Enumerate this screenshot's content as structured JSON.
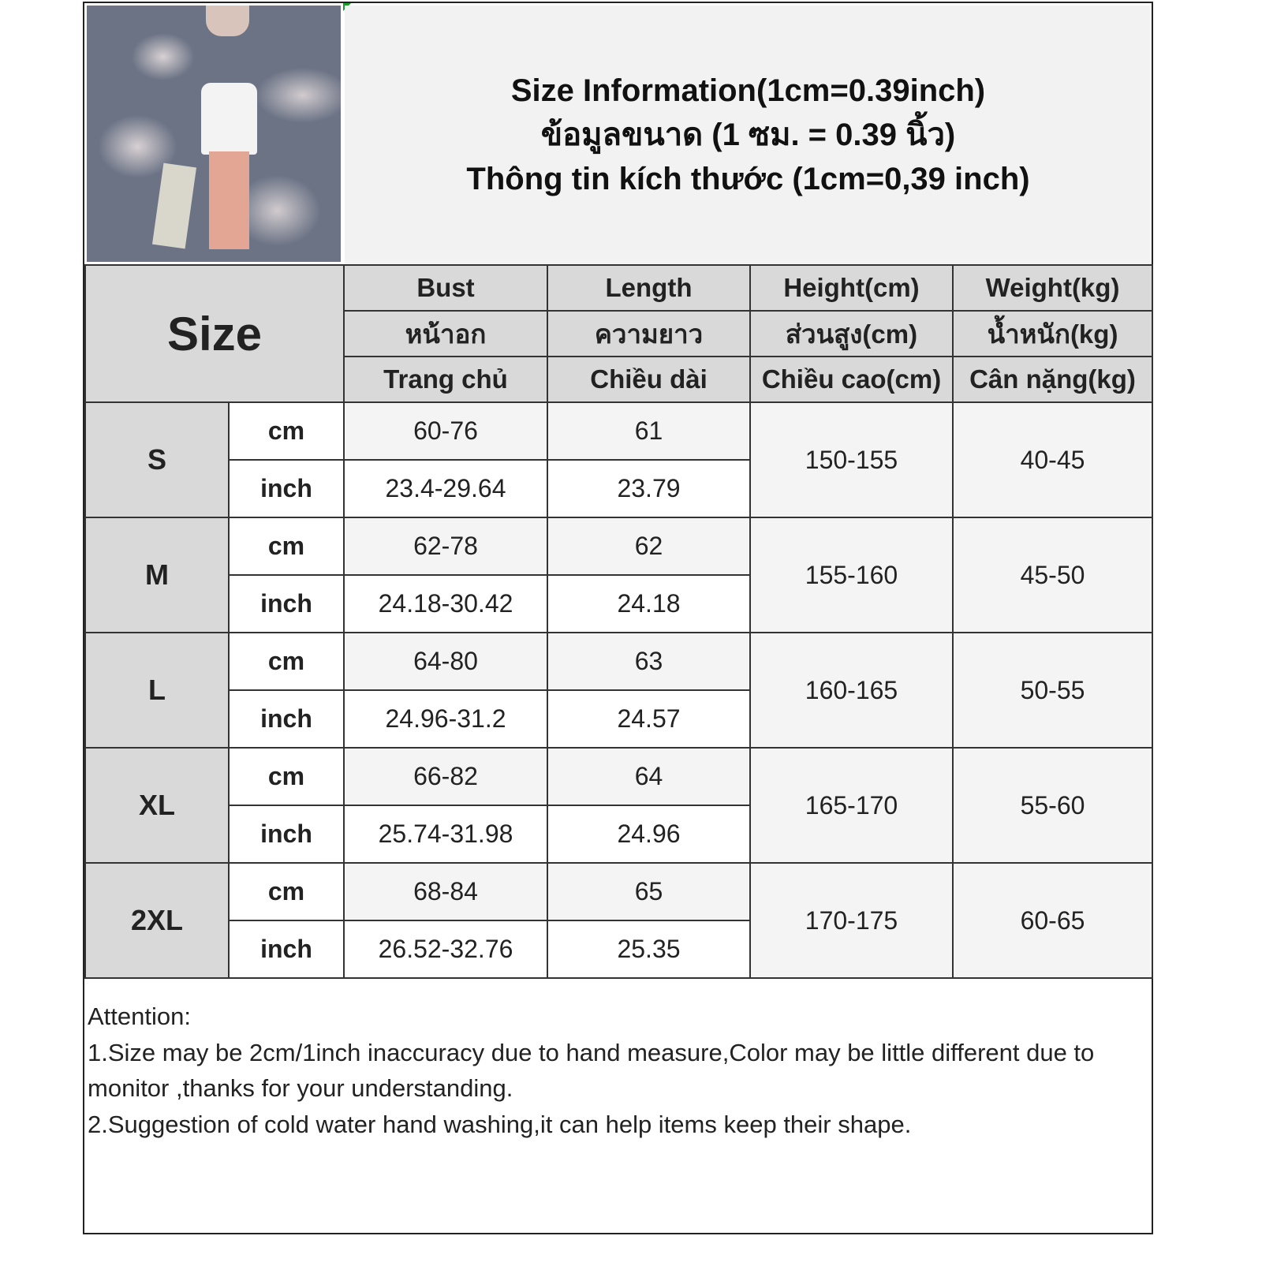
{
  "title_lines": [
    "Size Information(1cm=0.39inch)",
    "ข้อมูลขนาด (1 ซม. = 0.39 นิ้ว)",
    "Thông tin kích thước (1cm=0,39 inch)"
  ],
  "size_header": "Size",
  "columns": [
    {
      "en": "Bust",
      "th": "หน้าอก",
      "vi": "Trang chủ"
    },
    {
      "en": "Length",
      "th": "ความยาว",
      "vi": "Chiều dài"
    },
    {
      "en": "Height(cm)",
      "th": "ส่วนสูง(cm)",
      "vi": "Chiều cao(cm)"
    },
    {
      "en": "Weight(kg)",
      "th": "น้ำหนัก(kg)",
      "vi": "Cân nặng(kg)"
    }
  ],
  "unit_labels": {
    "cm": "cm",
    "inch": "inch"
  },
  "rows": [
    {
      "size": "S",
      "bust_cm": "60-76",
      "length_cm": "61",
      "bust_in": "23.4-29.64",
      "length_in": "23.79",
      "height": "150-155",
      "weight": "40-45"
    },
    {
      "size": "M",
      "bust_cm": "62-78",
      "length_cm": "62",
      "bust_in": "24.18-30.42",
      "length_in": "24.18",
      "height": "155-160",
      "weight": "45-50"
    },
    {
      "size": "L",
      "bust_cm": "64-80",
      "length_cm": "63",
      "bust_in": "24.96-31.2",
      "length_in": "24.57",
      "height": "160-165",
      "weight": "50-55"
    },
    {
      "size": "XL",
      "bust_cm": "66-82",
      "length_cm": "64",
      "bust_in": "25.74-31.98",
      "length_in": "24.96",
      "height": "165-170",
      "weight": "55-60"
    },
    {
      "size": "2XL",
      "bust_cm": "68-84",
      "length_cm": "65",
      "bust_in": "26.52-32.76",
      "length_in": "25.35",
      "height": "170-175",
      "weight": "60-65"
    }
  ],
  "notes": {
    "heading": "Attention:",
    "line1": "1.Size may be 2cm/1inch inaccuracy due to hand measure,Color may be little different due to monitor ,thanks for your understanding.",
    "line2": "2.Suggestion of cold water hand washing,it can help items keep their shape."
  }
}
